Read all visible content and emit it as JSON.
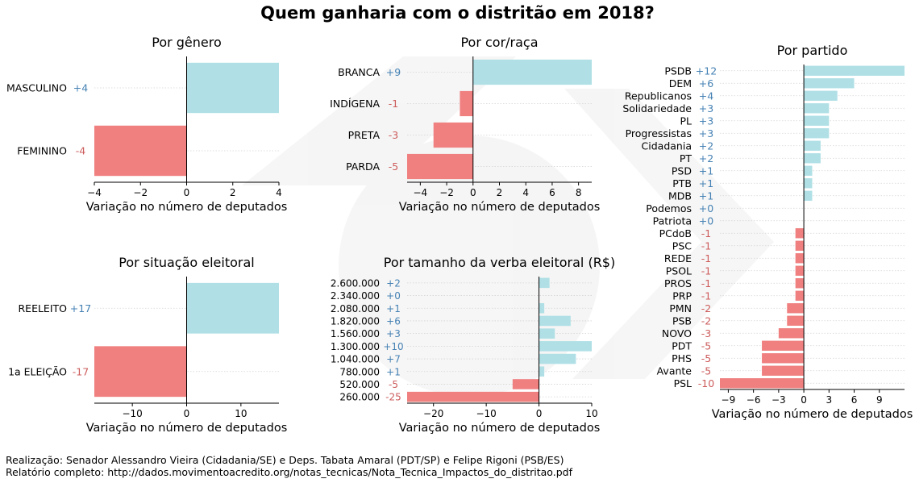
{
  "title": "Quem ganharia com o distritão em 2018?",
  "footer": {
    "line1": "Realização: Senador Alessandro Vieira (Cidadania/SE) e Deps. Tabata Amaral (PDT/SP) e Felipe Rigoni (PSB/ES)",
    "line2": "Relatório completo: http://dados.movimentoacredito.org/notas_tecnicas/Nota_Tecnica_Impactos_do_distritao.pdf"
  },
  "colors": {
    "positive": "#b0e0e6",
    "negative": "#f08080",
    "positive_label": "#4682b4",
    "negative_label": "#cd5c5c",
    "grid": "#d3d3d3"
  },
  "chart_data": [
    {
      "id": "genero",
      "type": "bar",
      "orientation": "horizontal",
      "title": "Por gênero",
      "xlabel": "Variação no número de deputados",
      "categories": [
        "MASCULINO",
        "FEMININO"
      ],
      "values": [
        4,
        -4
      ],
      "value_labels": [
        "+4",
        "-4"
      ],
      "xlim": [
        -4,
        4
      ],
      "xticks": [
        -4,
        -2,
        0,
        2,
        4
      ],
      "xtick_labels": [
        "−4",
        "−2",
        "0",
        "2",
        "4"
      ]
    },
    {
      "id": "cor",
      "type": "bar",
      "orientation": "horizontal",
      "title": "Por cor/raça",
      "xlabel": "Variação no número de deputados",
      "categories": [
        "BRANCA",
        "INDÍGENA",
        "PRETA",
        "PARDA"
      ],
      "values": [
        9,
        -1,
        -3,
        -5
      ],
      "value_labels": [
        "+9",
        "-1",
        "-3",
        "-5"
      ],
      "xlim": [
        -5,
        9
      ],
      "xticks": [
        -4,
        -2,
        0,
        2,
        4,
        6,
        8
      ],
      "xtick_labels": [
        "−4",
        "−2",
        "0",
        "2",
        "4",
        "6",
        "8"
      ]
    },
    {
      "id": "partido",
      "type": "bar",
      "orientation": "horizontal",
      "title": "Por partido",
      "xlabel": "Variação no número de deputados",
      "categories": [
        "PSDB",
        "DEM",
        "Republicanos",
        "Solidariedade",
        "PL",
        "Progressistas",
        "Cidadania",
        "PT",
        "PSD",
        "PTB",
        "MDB",
        "Podemos",
        "Patriota",
        "PCdoB",
        "PSC",
        "REDE",
        "PSOL",
        "PROS",
        "PRP",
        "PMN",
        "PSB",
        "NOVO",
        "PDT",
        "PHS",
        "Avante",
        "PSL"
      ],
      "values": [
        12,
        6,
        4,
        3,
        3,
        3,
        2,
        2,
        1,
        1,
        1,
        0,
        0,
        -1,
        -1,
        -1,
        -1,
        -1,
        -1,
        -2,
        -2,
        -3,
        -5,
        -5,
        -5,
        -10
      ],
      "value_labels": [
        "+12",
        "+6",
        "+4",
        "+3",
        "+3",
        "+3",
        "+2",
        "+2",
        "+1",
        "+1",
        "+1",
        "+0",
        "+0",
        "-1",
        "-1",
        "-1",
        "-1",
        "-1",
        "-1",
        "-2",
        "-2",
        "-3",
        "-5",
        "-5",
        "-5",
        "-10"
      ],
      "xlim": [
        -10,
        12
      ],
      "xticks": [
        -9,
        -6,
        -3,
        0,
        3,
        6,
        9
      ],
      "xtick_labels": [
        "−9",
        "−6",
        "−3",
        "0",
        "3",
        "6",
        "9"
      ]
    },
    {
      "id": "situacao",
      "type": "bar",
      "orientation": "horizontal",
      "title": "Por situação eleitoral",
      "xlabel": "Variação no número de deputados",
      "categories": [
        "REELEITO",
        "1a ELEIÇÃO"
      ],
      "values": [
        17,
        -17
      ],
      "value_labels": [
        "+17",
        "-17"
      ],
      "xlim": [
        -17,
        17
      ],
      "xticks": [
        -10,
        0,
        10
      ],
      "xtick_labels": [
        "−10",
        "0",
        "10"
      ]
    },
    {
      "id": "verba",
      "type": "bar",
      "orientation": "horizontal",
      "title": "Por tamanho da verba eleitoral (R$)",
      "xlabel": "Variação no número de deputados",
      "categories": [
        "2.600.000",
        "2.340.000",
        "2.080.000",
        "1.820.000",
        "1.560.000",
        "1.300.000",
        "1.040.000",
        "780.000",
        "520.000",
        "260.000"
      ],
      "values": [
        2,
        0,
        1,
        6,
        3,
        10,
        7,
        1,
        -5,
        -25
      ],
      "value_labels": [
        "+2",
        "+0",
        "+1",
        "+6",
        "+3",
        "+10",
        "+7",
        "+1",
        "-5",
        "-25"
      ],
      "xlim": [
        -25,
        10
      ],
      "xticks": [
        -20,
        -10,
        0,
        10
      ],
      "xtick_labels": [
        "−20",
        "−10",
        "0",
        "10"
      ]
    }
  ]
}
